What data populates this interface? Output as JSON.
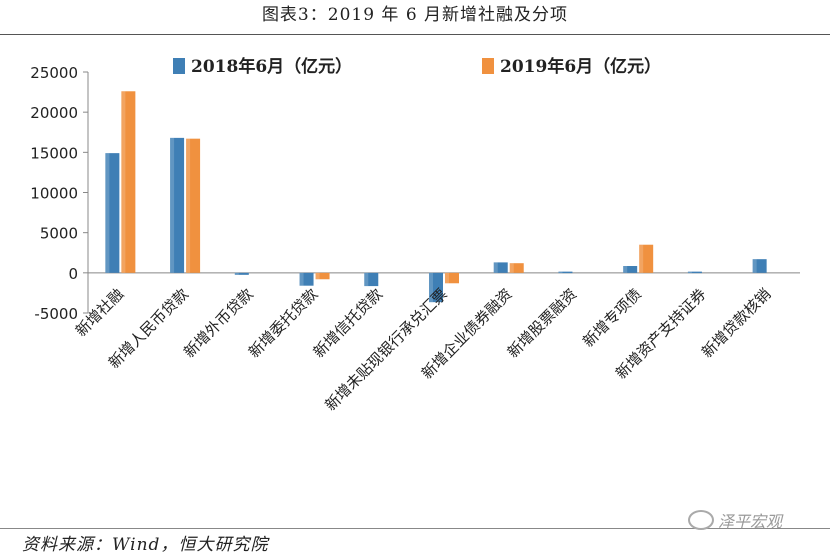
{
  "title": "图表3：2019 年 6 月新增社融及分项",
  "source": "资料来源：Wind，恒大研究院",
  "watermark": "泽平宏观",
  "colors": {
    "s2018": "#3f7fb5",
    "s2019": "#f0913f",
    "axis": "#888888"
  },
  "chart_data": {
    "type": "bar",
    "categories": [
      "新增社融",
      "新增人民币贷款",
      "新增外币贷款",
      "新增委托贷款",
      "新增信托贷款",
      "新增未贴现银行承兑汇票",
      "新增企业债券融资",
      "新增股票融资",
      "新增专项债",
      "新增资产支持证券",
      "新增贷款核销"
    ],
    "series": [
      {
        "name": "2018年6月（亿元）",
        "values": [
          14900,
          16800,
          -250,
          -1600,
          -1650,
          -3650,
          1300,
          150,
          850,
          150,
          1700
        ]
      },
      {
        "name": "2019年6月（亿元）",
        "values": [
          22600,
          16700,
          null,
          -800,
          null,
          -1300,
          1200,
          null,
          3500,
          null,
          null
        ]
      }
    ],
    "yticks": [
      -5000,
      0,
      5000,
      10000,
      15000,
      20000,
      25000
    ],
    "ylim": [
      -5000,
      25000
    ],
    "legend_position": "top"
  }
}
